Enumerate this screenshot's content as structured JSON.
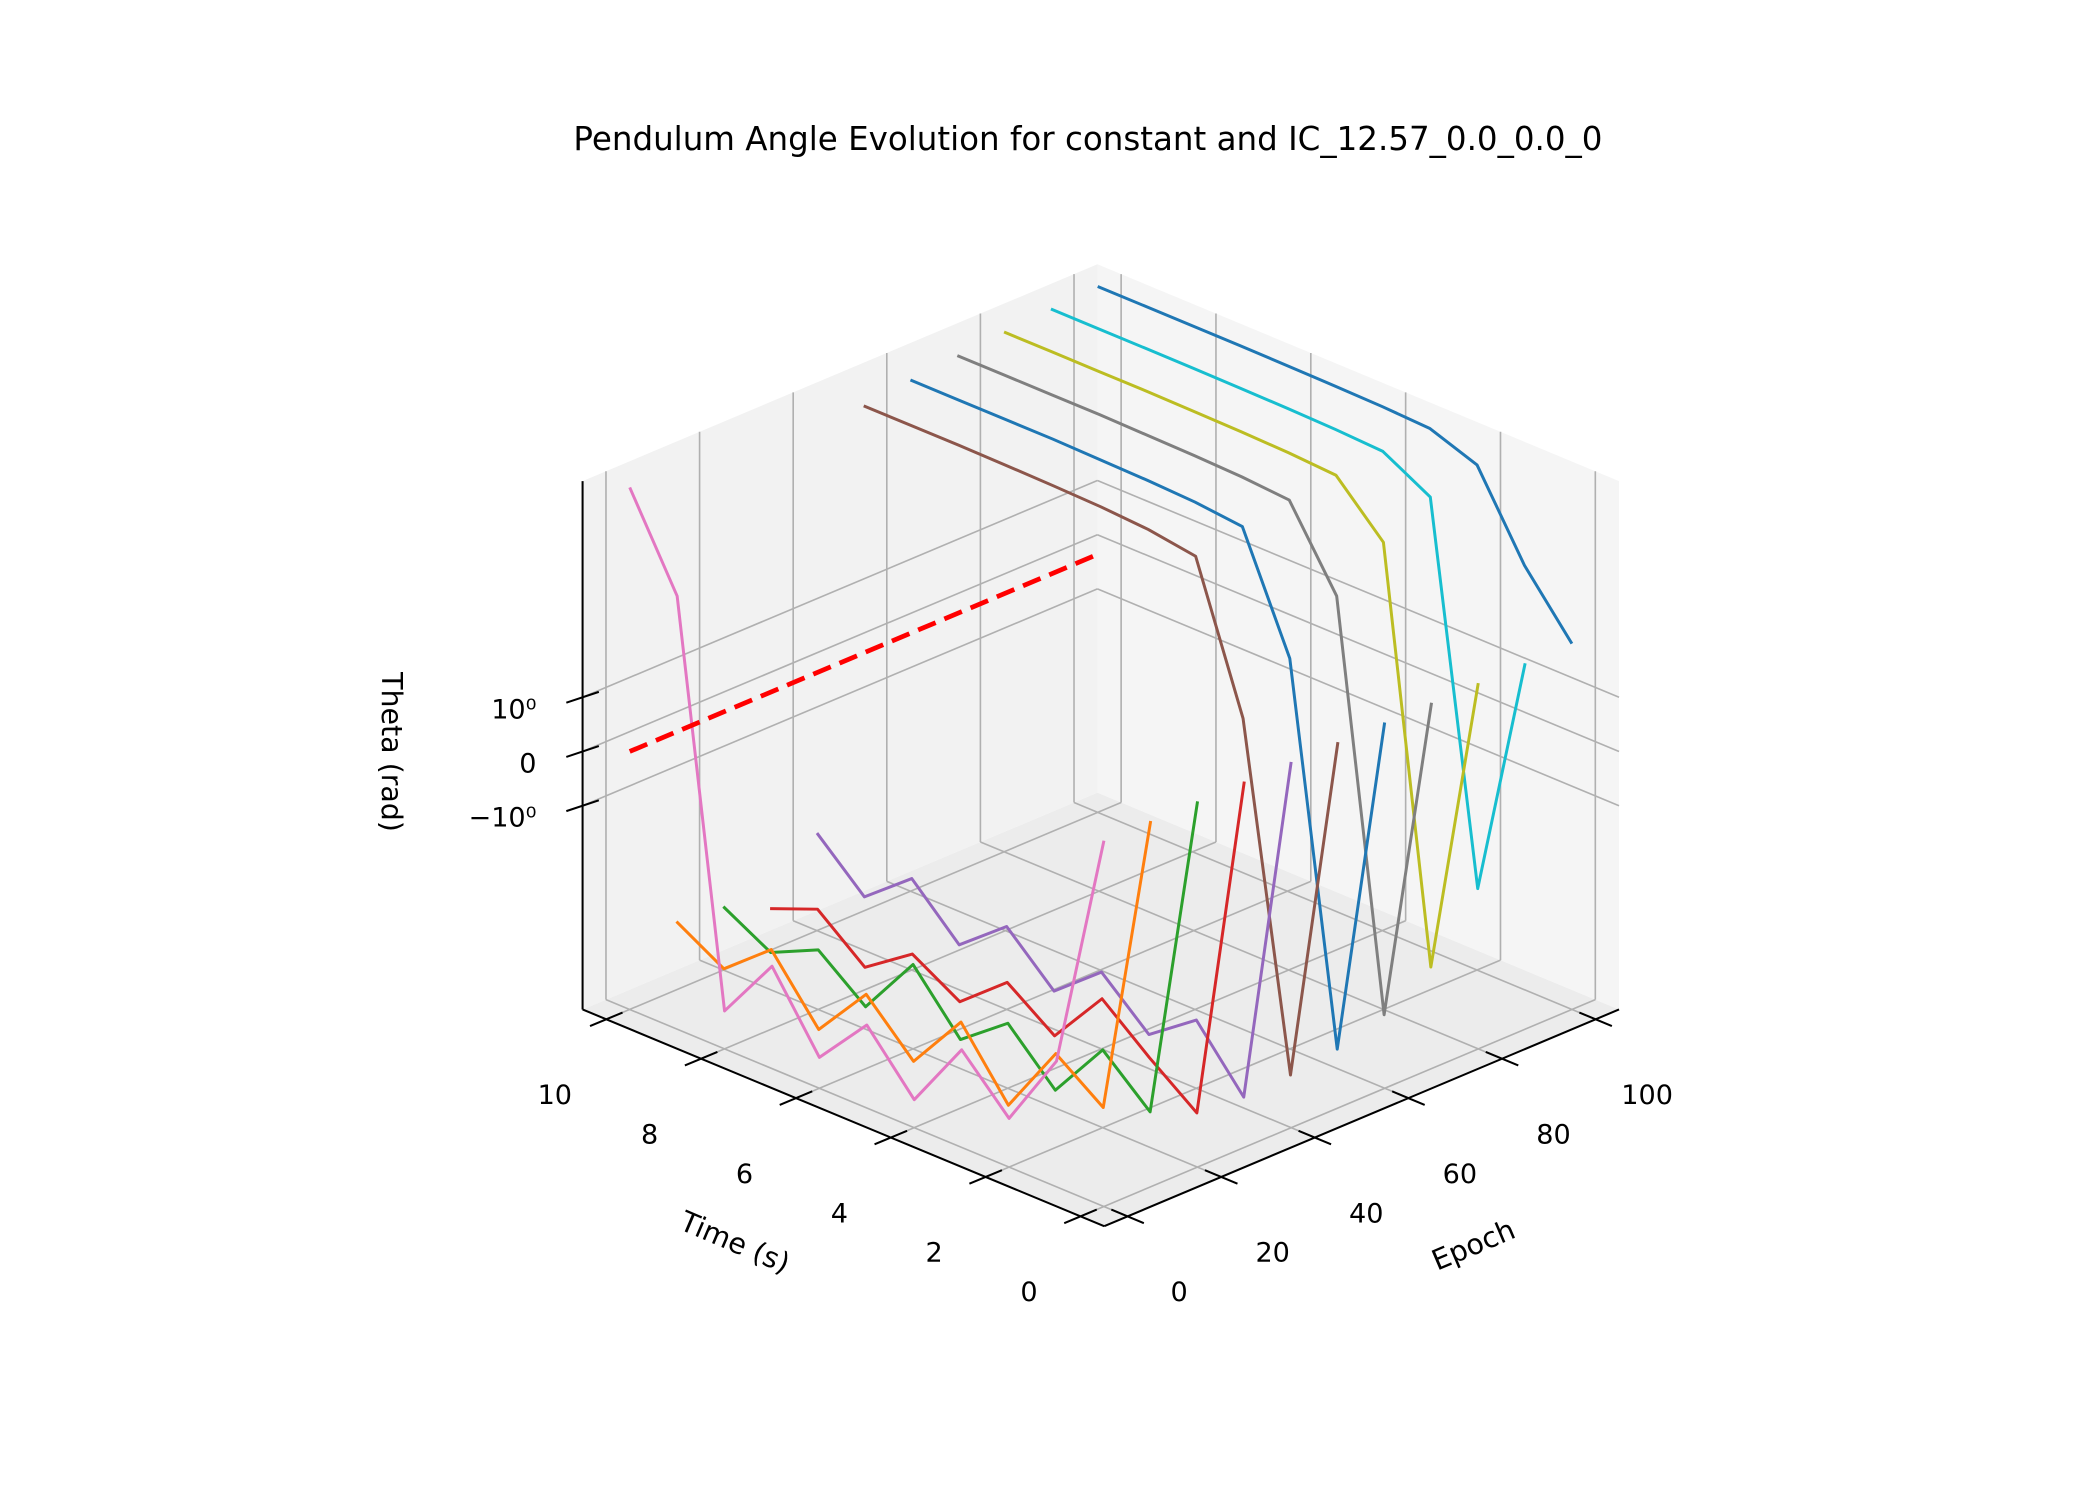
{
  "chart_data": {
    "type": "line3d",
    "title": "Pendulum Angle Evolution for constant and IC_12.57_0.0_0.0_0",
    "x_label": "Time (s)",
    "y_label": "Epoch",
    "z_label": "Theta (rad)",
    "x": [
      0,
      1,
      2,
      3,
      4,
      5,
      6,
      7,
      8,
      9,
      10
    ],
    "xlim": [
      -0.5,
      10.5
    ],
    "xticks": [
      0,
      2,
      4,
      6,
      8,
      10
    ],
    "ylim": [
      -5,
      105
    ],
    "yticks": [
      0,
      20,
      40,
      60,
      80,
      100
    ],
    "zlim": [
      -15000,
      27000
    ],
    "zscale": "symlog",
    "zticks": [
      {
        "value": -1,
        "label": "−10⁰"
      },
      0,
      {
        "value": 1,
        "label": "10⁰"
      }
    ],
    "grid": true,
    "series": [
      {
        "epoch": 0,
        "color": "#e377c2",
        "values": [
          12.57,
          -40,
          -1500,
          -150,
          -4000,
          -300,
          -3500,
          -120,
          -2500,
          300,
          20000
        ]
      },
      {
        "epoch": 10,
        "color": "#ff7f0e",
        "values": [
          12.57,
          -900,
          -180,
          -5200,
          -260,
          -4200,
          -450,
          -6000,
          -350,
          -2200,
          -600
        ]
      },
      {
        "epoch": 20,
        "color": "#2ca02c",
        "values": [
          12.57,
          -2800,
          -380,
          -6500,
          -700,
          -3800,
          -280,
          -5200,
          -900,
          -2600,
          -750
        ]
      },
      {
        "epoch": 30,
        "color": "#d62728",
        "values": [
          12.57,
          -7500,
          -1400,
          -220,
          -3200,
          -650,
          -4100,
          -1100,
          -5200,
          -850,
          -2100
        ]
      },
      {
        "epoch": 40,
        "color": "#9467bd",
        "values": [
          12.57,
          -9000,
          -600,
          -3000,
          -400,
          -2500,
          -300,
          -1800,
          -200,
          -1200,
          -150
        ]
      },
      {
        "epoch": 50,
        "color": "#8c564b",
        "values": [
          12.57,
          -8000,
          6,
          5000,
          7000,
          8000,
          8500,
          8800,
          9000,
          9000,
          9000
        ]
      },
      {
        "epoch": 60,
        "color": "#1f77b4",
        "values": [
          12.57,
          -6000,
          40,
          8000,
          10000,
          11000,
          11500,
          12000,
          12000,
          12000,
          12000
        ]
      },
      {
        "epoch": 70,
        "color": "#7f7f7f",
        "values": [
          12.57,
          -3000,
          300,
          11000,
          13000,
          14000,
          14500,
          15000,
          15000,
          15000,
          15000
        ]
      },
      {
        "epoch": 80,
        "color": "#bcbd22",
        "values": [
          12.57,
          -800,
          1500,
          14000,
          16000,
          17000,
          17500,
          18000,
          18000,
          18000,
          18000
        ]
      },
      {
        "epoch": 90,
        "color": "#17becf",
        "values": [
          12.57,
          -50,
          5000,
          17000,
          19000,
          20000,
          20500,
          21000,
          21000,
          21000,
          21000
        ]
      },
      {
        "epoch": 100,
        "color": "#1f77b4",
        "values": [
          12.57,
          200,
          9000,
          20000,
          22000,
          23000,
          23500,
          24000,
          24000,
          24000,
          24000
        ]
      }
    ],
    "reference": {
      "color": "#ff0000",
      "x": [
        10,
        10
      ],
      "epochs": [
        0,
        100
      ],
      "values": [
        0,
        0
      ]
    }
  }
}
